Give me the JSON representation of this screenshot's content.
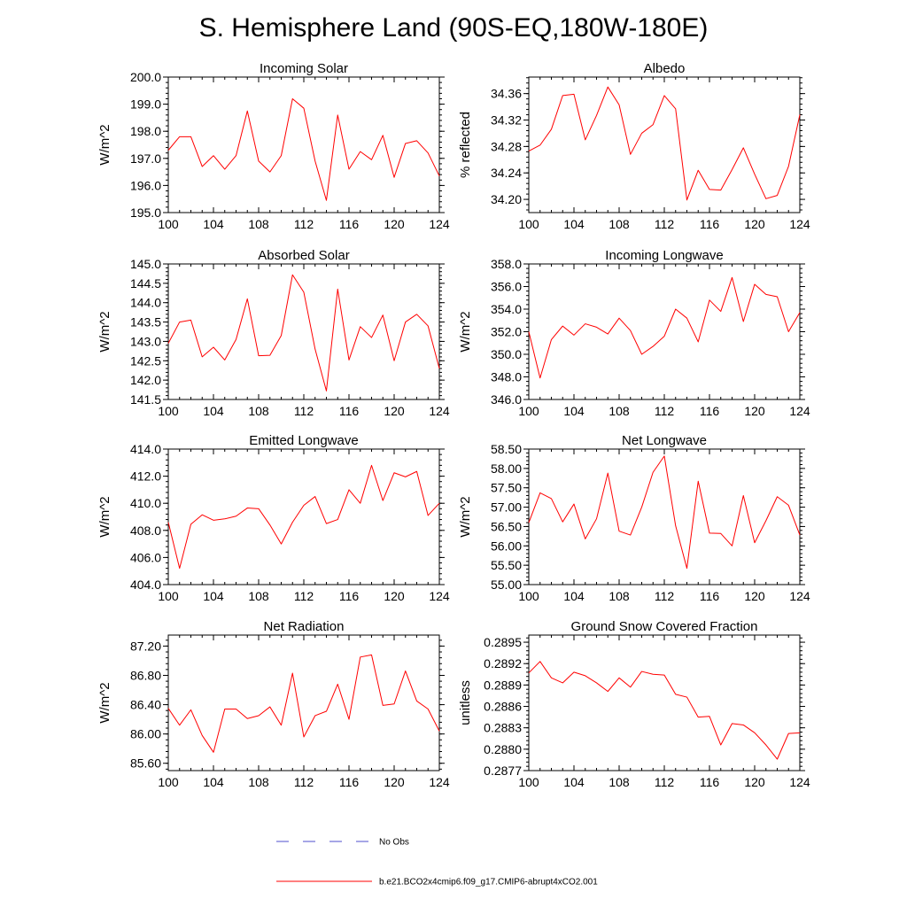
{
  "figure": {
    "title": "S. Hemisphere Land (90S-EQ,180W-180E)"
  },
  "legend": {
    "obs_label": "No Obs",
    "obs_color": "#4d4dcc",
    "model_label": "b.e21.BCO2x4cmip6.f09_g17.CMIP6-abrupt4xCO2.001",
    "model_color": "#ff0000"
  },
  "chart_data": [
    {
      "type": "line",
      "title": "Incoming Solar",
      "ylabel": "W/m^2",
      "xlabel": "",
      "xlim": [
        100,
        124
      ],
      "ylim": [
        195.0,
        200.0
      ],
      "xticks": [
        100,
        104,
        108,
        112,
        116,
        120,
        124
      ],
      "yticks": [
        195.0,
        196.0,
        197.0,
        198.0,
        199.0,
        200.0
      ],
      "ytick_labels": [
        "195.0",
        "196.0",
        "197.0",
        "198.0",
        "199.0",
        "200.0"
      ],
      "series": [
        {
          "name": "b.e21.BCO2x4cmip6.f09_g17.CMIP6-abrupt4xCO2.001",
          "x": [
            100,
            101,
            102,
            103,
            104,
            105,
            106,
            107,
            108,
            109,
            110,
            111,
            112,
            113,
            114,
            115,
            116,
            117,
            118,
            119,
            120,
            121,
            122,
            123,
            124
          ],
          "values": [
            197.3,
            197.8,
            197.8,
            196.7,
            197.1,
            196.6,
            197.1,
            198.75,
            196.9,
            196.5,
            197.1,
            199.2,
            198.85,
            196.9,
            195.45,
            198.6,
            196.6,
            197.25,
            196.95,
            197.85,
            196.3,
            197.55,
            197.65,
            197.2,
            196.35
          ]
        }
      ]
    },
    {
      "type": "line",
      "title": "Albedo",
      "ylabel": "% reflected",
      "xlabel": "",
      "xlim": [
        100,
        124
      ],
      "ylim": [
        34.18,
        34.385
      ],
      "xticks": [
        100,
        104,
        108,
        112,
        116,
        120,
        124
      ],
      "yticks": [
        34.2,
        34.24,
        34.28,
        34.32,
        34.36
      ],
      "ytick_labels": [
        "34.20",
        "34.24",
        "34.28",
        "34.32",
        "34.36"
      ],
      "series": [
        {
          "name": "b.e21.BCO2x4cmip6.f09_g17.CMIP6-abrupt4xCO2.001",
          "x": [
            100,
            101,
            102,
            103,
            104,
            105,
            106,
            107,
            108,
            109,
            110,
            111,
            112,
            113,
            114,
            115,
            116,
            117,
            118,
            119,
            120,
            121,
            122,
            123,
            124
          ],
          "values": [
            34.273,
            34.282,
            34.306,
            34.357,
            34.359,
            34.29,
            34.327,
            34.37,
            34.343,
            34.268,
            34.3,
            34.313,
            34.357,
            34.337,
            34.199,
            34.244,
            34.215,
            34.214,
            34.245,
            34.278,
            34.238,
            34.201,
            34.206,
            34.25,
            34.328
          ]
        }
      ]
    },
    {
      "type": "line",
      "title": "Absorbed Solar",
      "ylabel": "W/m^2",
      "xlabel": "",
      "xlim": [
        100,
        124
      ],
      "ylim": [
        141.5,
        145.0
      ],
      "xticks": [
        100,
        104,
        108,
        112,
        116,
        120,
        124
      ],
      "yticks": [
        141.5,
        142.0,
        142.5,
        143.0,
        143.5,
        144.0,
        144.5,
        145.0
      ],
      "ytick_labels": [
        "141.5",
        "142.0",
        "142.5",
        "143.0",
        "143.5",
        "144.0",
        "144.5",
        "145.0"
      ],
      "series": [
        {
          "name": "b.e21.BCO2x4cmip6.f09_g17.CMIP6-abrupt4xCO2.001",
          "x": [
            100,
            101,
            102,
            103,
            104,
            105,
            106,
            107,
            108,
            109,
            110,
            111,
            112,
            113,
            114,
            115,
            116,
            117,
            118,
            119,
            120,
            121,
            122,
            123,
            124
          ],
          "values": [
            142.95,
            143.5,
            143.55,
            142.6,
            142.85,
            142.52,
            143.05,
            144.1,
            142.63,
            142.64,
            143.15,
            144.72,
            144.27,
            142.8,
            141.72,
            144.35,
            142.52,
            143.38,
            143.1,
            143.68,
            142.5,
            143.5,
            143.7,
            143.4,
            142.3
          ]
        }
      ]
    },
    {
      "type": "line",
      "title": "Incoming Longwave",
      "ylabel": "W/m^2",
      "xlabel": "",
      "xlim": [
        100,
        124
      ],
      "ylim": [
        346.0,
        358.0
      ],
      "xticks": [
        100,
        104,
        108,
        112,
        116,
        120,
        124
      ],
      "yticks": [
        346.0,
        348.0,
        350.0,
        352.0,
        354.0,
        356.0,
        358.0
      ],
      "ytick_labels": [
        "346.0",
        "348.0",
        "350.0",
        "352.0",
        "354.0",
        "356.0",
        "358.0"
      ],
      "series": [
        {
          "name": "b.e21.BCO2x4cmip6.f09_g17.CMIP6-abrupt4xCO2.001",
          "x": [
            100,
            101,
            102,
            103,
            104,
            105,
            106,
            107,
            108,
            109,
            110,
            111,
            112,
            113,
            114,
            115,
            116,
            117,
            118,
            119,
            120,
            121,
            122,
            123,
            124
          ],
          "values": [
            352.0,
            347.9,
            351.3,
            352.5,
            351.7,
            352.7,
            352.4,
            351.8,
            353.2,
            352.1,
            350.0,
            350.7,
            351.6,
            354.0,
            353.2,
            351.1,
            354.8,
            353.8,
            356.8,
            352.9,
            356.2,
            355.3,
            355.1,
            352.0,
            353.7
          ]
        }
      ]
    },
    {
      "type": "line",
      "title": "Emitted Longwave",
      "ylabel": "W/m^2",
      "xlabel": "",
      "xlim": [
        100,
        124
      ],
      "ylim": [
        404.0,
        414.0
      ],
      "xticks": [
        100,
        104,
        108,
        112,
        116,
        120,
        124
      ],
      "yticks": [
        404.0,
        406.0,
        408.0,
        410.0,
        412.0,
        414.0
      ],
      "ytick_labels": [
        "404.0",
        "406.0",
        "408.0",
        "410.0",
        "412.0",
        "414.0"
      ],
      "series": [
        {
          "name": "b.e21.BCO2x4cmip6.f09_g17.CMIP6-abrupt4xCO2.001",
          "x": [
            100,
            101,
            102,
            103,
            104,
            105,
            106,
            107,
            108,
            109,
            110,
            111,
            112,
            113,
            114,
            115,
            116,
            117,
            118,
            119,
            120,
            121,
            122,
            123,
            124
          ],
          "values": [
            408.6,
            405.2,
            408.45,
            409.15,
            408.75,
            408.85,
            409.05,
            409.65,
            409.6,
            408.4,
            407.0,
            408.6,
            409.85,
            410.5,
            408.5,
            408.8,
            411.0,
            410.0,
            412.8,
            410.2,
            412.25,
            411.95,
            412.35,
            409.1,
            410.0
          ]
        }
      ]
    },
    {
      "type": "line",
      "title": "Net Longwave",
      "ylabel": "W/m^2",
      "xlabel": "",
      "xlim": [
        100,
        124
      ],
      "ylim": [
        55.0,
        58.5
      ],
      "xticks": [
        100,
        104,
        108,
        112,
        116,
        120,
        124
      ],
      "yticks": [
        55.0,
        55.5,
        56.0,
        56.5,
        57.0,
        57.5,
        58.0,
        58.5
      ],
      "ytick_labels": [
        "55.00",
        "55.50",
        "56.00",
        "56.50",
        "57.00",
        "57.50",
        "58.00",
        "58.50"
      ],
      "series": [
        {
          "name": "b.e21.BCO2x4cmip6.f09_g17.CMIP6-abrupt4xCO2.001",
          "x": [
            100,
            101,
            102,
            103,
            104,
            105,
            106,
            107,
            108,
            109,
            110,
            111,
            112,
            113,
            114,
            115,
            116,
            117,
            118,
            119,
            120,
            121,
            122,
            123,
            124
          ],
          "values": [
            56.6,
            57.37,
            57.22,
            56.62,
            57.08,
            56.18,
            56.7,
            57.88,
            56.38,
            56.28,
            57.0,
            57.9,
            58.32,
            56.52,
            55.42,
            57.67,
            56.33,
            56.32,
            56.0,
            57.3,
            56.08,
            56.65,
            57.27,
            57.05,
            56.28
          ]
        }
      ]
    },
    {
      "type": "line",
      "title": "Net Radiation",
      "ylabel": "W/m^2",
      "xlabel": "",
      "xlim": [
        100,
        124
      ],
      "ylim": [
        85.5,
        87.35
      ],
      "xticks": [
        100,
        104,
        108,
        112,
        116,
        120,
        124
      ],
      "yticks": [
        85.6,
        86.0,
        86.4,
        86.8,
        87.2
      ],
      "ytick_labels": [
        "85.60",
        "86.00",
        "86.40",
        "86.80",
        "87.20"
      ],
      "series": [
        {
          "name": "b.e21.BCO2x4cmip6.f09_g17.CMIP6-abrupt4xCO2.001",
          "x": [
            100,
            101,
            102,
            103,
            104,
            105,
            106,
            107,
            108,
            109,
            110,
            111,
            112,
            113,
            114,
            115,
            116,
            117,
            118,
            119,
            120,
            121,
            122,
            123,
            124
          ],
          "values": [
            86.35,
            86.12,
            86.33,
            85.98,
            85.75,
            86.34,
            86.34,
            86.21,
            86.25,
            86.37,
            86.12,
            86.83,
            85.96,
            86.25,
            86.31,
            86.68,
            86.2,
            87.05,
            87.08,
            86.39,
            86.41,
            86.86,
            86.45,
            86.34,
            86.04
          ]
        }
      ]
    },
    {
      "type": "line",
      "title": "Ground Snow Covered Fraction",
      "ylabel": "unitless",
      "xlabel": "",
      "xlim": [
        100,
        124
      ],
      "ylim": [
        0.2877,
        0.2896
      ],
      "xticks": [
        100,
        104,
        108,
        112,
        116,
        120,
        124
      ],
      "yticks": [
        0.2877,
        0.288,
        0.2883,
        0.2886,
        0.2889,
        0.2892,
        0.2895
      ],
      "ytick_labels": [
        "0.2877",
        "0.2880",
        "0.2883",
        "0.2886",
        "0.2889",
        "0.2892",
        "0.2895"
      ],
      "series": [
        {
          "name": "b.e21.BCO2x4cmip6.f09_g17.CMIP6-abrupt4xCO2.001",
          "x": [
            100,
            101,
            102,
            103,
            104,
            105,
            106,
            107,
            108,
            109,
            110,
            111,
            112,
            113,
            114,
            115,
            116,
            117,
            118,
            119,
            120,
            121,
            122,
            123,
            124
          ],
          "values": [
            0.28907,
            0.28923,
            0.289,
            0.28893,
            0.28908,
            0.28903,
            0.28893,
            0.28881,
            0.289,
            0.28887,
            0.28909,
            0.28905,
            0.28904,
            0.28877,
            0.28873,
            0.28845,
            0.28846,
            0.28806,
            0.28836,
            0.28834,
            0.28823,
            0.28806,
            0.28786,
            0.28822,
            0.28823
          ]
        }
      ]
    }
  ]
}
